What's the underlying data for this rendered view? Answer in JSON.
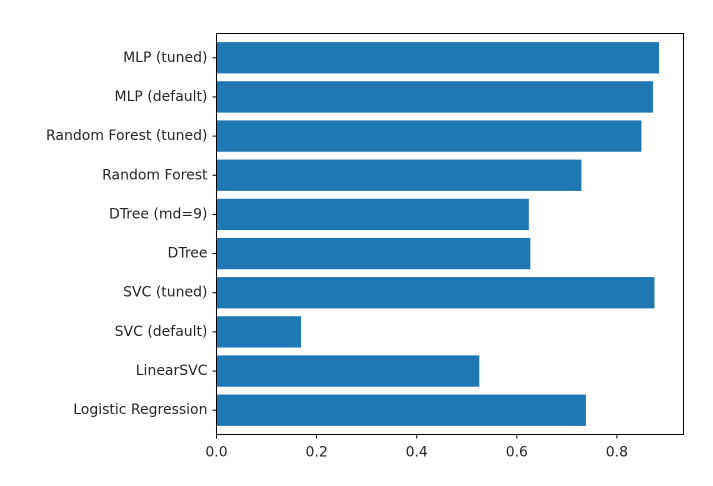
{
  "chart_data": {
    "type": "bar",
    "orientation": "horizontal",
    "categories": [
      "MLP (tuned)",
      "MLP (default)",
      "Random Forest (tuned)",
      "Random Forest",
      "DTree (md=9)",
      "DTree",
      "SVC (tuned)",
      "SVC (default)",
      "LinearSVC",
      "Logistic Regression"
    ],
    "values": [
      0.884,
      0.872,
      0.849,
      0.729,
      0.624,
      0.627,
      0.875,
      0.169,
      0.525,
      0.738
    ],
    "xlim": [
      0,
      0.933
    ],
    "xticks": [
      0.0,
      0.2,
      0.4,
      0.6,
      0.8
    ],
    "xtick_labels": [
      "0.0",
      "0.2",
      "0.4",
      "0.6",
      "0.8"
    ],
    "title": "",
    "xlabel": "",
    "ylabel": "",
    "bar_color": "#1f77b4",
    "grid": false
  }
}
